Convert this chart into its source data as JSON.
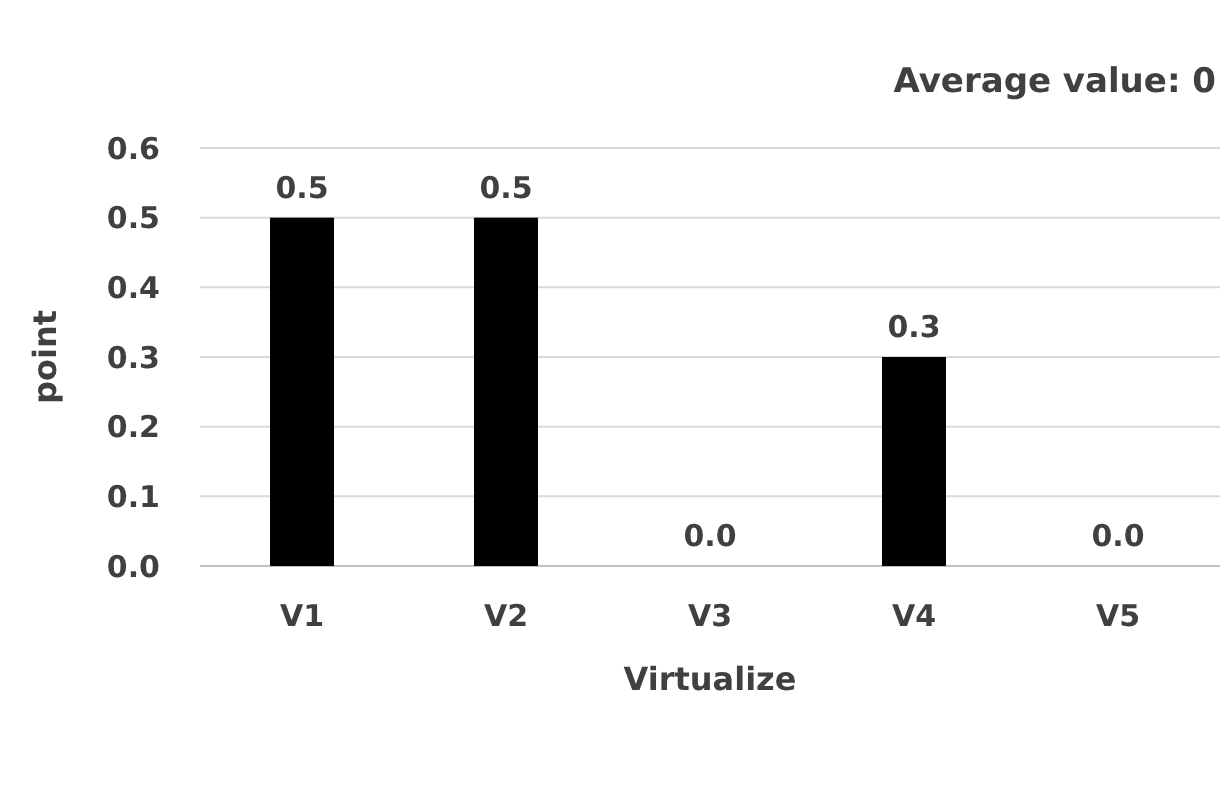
{
  "chart_data": {
    "type": "bar",
    "title": "Average value: 0",
    "xlabel": "Virtualize",
    "ylabel": "point",
    "categories": [
      "V1",
      "V2",
      "V3",
      "V4",
      "V5"
    ],
    "values": [
      0.5,
      0.5,
      0.0,
      0.3,
      0.0
    ],
    "color": "#000000",
    "value_labels": [
      "0.5",
      "0.5",
      "0.0",
      "0.3",
      "0.0"
    ],
    "ylim": [
      0,
      0.6
    ],
    "yticks": [
      {
        "value": 0,
        "label": "0.0"
      },
      {
        "value": 0.1,
        "label": "0.1"
      },
      {
        "value": 0.2,
        "label": "0.2"
      },
      {
        "value": 0.3,
        "label": "0.3"
      },
      {
        "value": 0.4,
        "label": "0.4"
      },
      {
        "value": 0.5,
        "label": "0.5"
      },
      {
        "value": 0.6,
        "label": "0.6"
      }
    ],
    "grid": "y"
  }
}
